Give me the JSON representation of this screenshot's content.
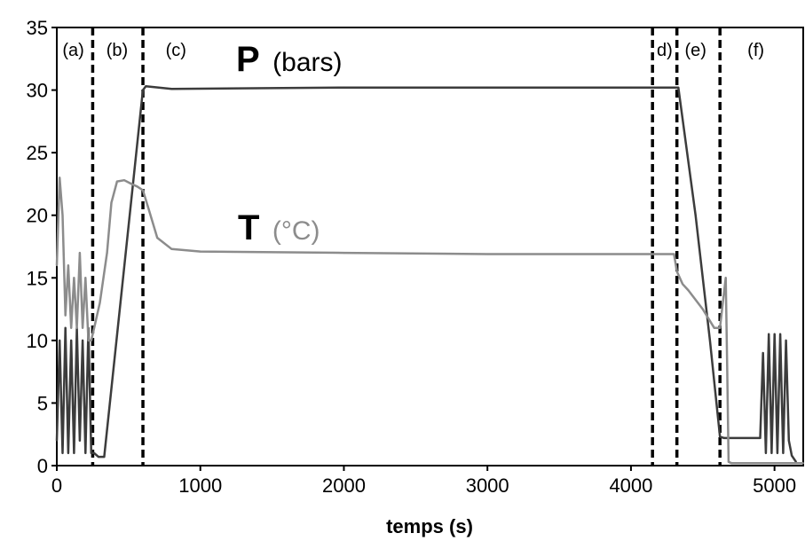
{
  "chart_data": {
    "type": "line",
    "xlabel": "temps (s)",
    "ylabel": "",
    "xlim": [
      0,
      5200
    ],
    "ylim": [
      0,
      35
    ],
    "xticks": [
      "0",
      "1000",
      "2000",
      "3000",
      "4000",
      "5000"
    ],
    "yticks": [
      "0",
      "5",
      "10",
      "15",
      "20",
      "25",
      "30",
      "35"
    ],
    "grid": false,
    "phase_lines": [
      250,
      600,
      4150,
      4320,
      4620
    ],
    "phase_labels": [
      {
        "text": "(a)",
        "x": 115
      },
      {
        "text": "(b)",
        "x": 420
      },
      {
        "text": "(c)",
        "x": 830
      },
      {
        "text": "d)",
        "x": 4235
      },
      {
        "text": "(e)",
        "x": 4450
      },
      {
        "text": "(f)",
        "x": 4870
      }
    ],
    "annotations": [
      {
        "letter": "P",
        "unit": "(bars)",
        "color": "#000000"
      },
      {
        "letter": "T",
        "unit": "(°C)",
        "color": "#808080"
      }
    ],
    "series": [
      {
        "name": "P",
        "color": "#3c3c3c",
        "x": [
          0,
          20,
          40,
          60,
          80,
          100,
          120,
          140,
          160,
          180,
          200,
          220,
          240,
          260,
          290,
          330,
          600,
          620,
          800,
          2000,
          3000,
          4000,
          4150,
          4300,
          4330,
          4450,
          4550,
          4620,
          4650,
          4900,
          4920,
          4940,
          4960,
          4980,
          5000,
          5020,
          5040,
          5060,
          5080,
          5100,
          5120,
          5150
        ],
        "values": [
          2,
          10,
          1,
          11,
          1,
          10,
          1,
          11,
          2,
          10,
          1,
          11,
          1,
          1,
          0.7,
          0.7,
          30,
          30.3,
          30.1,
          30.2,
          30.2,
          30.2,
          30.2,
          30.2,
          30.2,
          20,
          10,
          2.3,
          2.2,
          2.2,
          9,
          1,
          10.5,
          1,
          10.5,
          1,
          10.5,
          1,
          10,
          2,
          0.8,
          0.3
        ]
      },
      {
        "name": "T",
        "color": "#8c8c8c",
        "x": [
          0,
          20,
          40,
          60,
          80,
          100,
          120,
          140,
          160,
          180,
          200,
          220,
          240,
          260,
          300,
          350,
          380,
          420,
          470,
          520,
          560,
          600,
          640,
          700,
          800,
          1000,
          2000,
          3000,
          4000,
          4300,
          4320,
          4360,
          4400,
          4500,
          4580,
          4620,
          4640,
          4660,
          4670,
          4680,
          4700,
          5100,
          5200
        ],
        "values": [
          16,
          23,
          20,
          12,
          16,
          11,
          15,
          11,
          17,
          11,
          15,
          10,
          10,
          11,
          13,
          17,
          21,
          22.7,
          22.8,
          22.5,
          22.3,
          22,
          20.5,
          18.2,
          17.3,
          17.1,
          17,
          16.9,
          16.9,
          16.9,
          15.5,
          14.5,
          14,
          12.5,
          11,
          11,
          13,
          15,
          8,
          0.3,
          0.2,
          0.2,
          0.2
        ]
      }
    ]
  }
}
